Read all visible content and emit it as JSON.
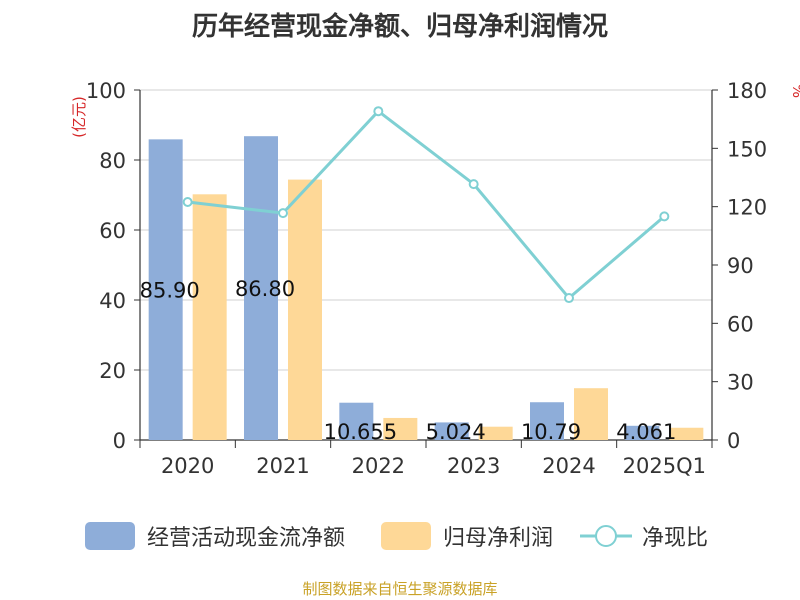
{
  "chart_data": {
    "type": "bar",
    "title": "历年经营现金净额、归母净利润情况",
    "categories": [
      "2020",
      "2021",
      "2022",
      "2023",
      "2024",
      "2025Q1"
    ],
    "y_left": {
      "label": "(亿元)",
      "range": [
        0,
        100
      ],
      "ticks": [
        0,
        20,
        40,
        60,
        80,
        100
      ]
    },
    "y_right": {
      "label": "%",
      "range": [
        0,
        180
      ],
      "ticks": [
        0,
        30,
        60,
        90,
        120,
        150,
        180
      ]
    },
    "grid": true,
    "legend_position": "bottom",
    "series": [
      {
        "name": "经营活动现金流净额",
        "type": "bar",
        "axis": "left",
        "color": "#8eadd9",
        "values": [
          85.9,
          86.8,
          10.655,
          5.024,
          10.79,
          4.061
        ],
        "data_labels": [
          "85.90",
          "86.80",
          "10.655",
          "5.024",
          "10.79",
          "4.061"
        ]
      },
      {
        "name": "归母净利润",
        "type": "bar",
        "axis": "left",
        "color": "#fed897",
        "values": [
          70.2,
          74.4,
          6.3,
          3.8,
          14.8,
          3.5
        ]
      },
      {
        "name": "净现比",
        "type": "line",
        "axis": "right",
        "color": "#7fd0d3",
        "values": [
          122.4,
          116.7,
          169.1,
          131.6,
          73.0,
          115.0
        ]
      }
    ]
  },
  "source": "制图数据来自恒生聚源数据库"
}
